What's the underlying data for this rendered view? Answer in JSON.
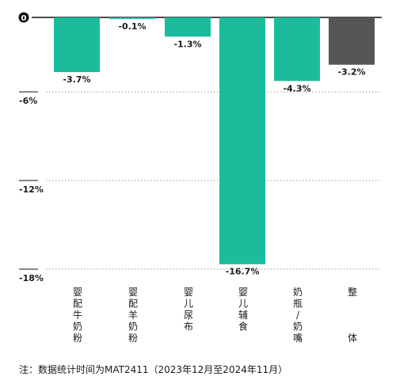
{
  "chart_data": {
    "type": "bar",
    "categories": [
      "婴配牛奶粉",
      "婴配羊奶粉",
      "婴儿尿布",
      "婴儿辅食",
      "奶瓶/奶嘴",
      "整体"
    ],
    "category_label_lines": [
      [
        "婴",
        "配",
        "牛",
        "奶",
        "粉"
      ],
      [
        "婴",
        "配",
        "羊",
        "奶",
        "粉"
      ],
      [
        "婴",
        "儿",
        "尿",
        "布"
      ],
      [
        "婴",
        "儿",
        "辅",
        "食"
      ],
      [
        "奶",
        "瓶",
        "/",
        "奶",
        "嘴"
      ],
      [
        "整",
        "",
        "",
        "",
        "体"
      ]
    ],
    "values": [
      -3.7,
      -0.1,
      -1.3,
      -16.7,
      -4.3,
      -3.2
    ],
    "value_labels": [
      "-3.7%",
      "-0.1%",
      "-1.3%",
      "-16.7%",
      "-4.3%",
      "-3.2%"
    ],
    "ylim": [
      -18,
      0
    ],
    "yticks": [
      0,
      -6,
      -12,
      -18
    ],
    "ytick_labels": [
      "0",
      "-6%",
      "-12%",
      "-18%"
    ],
    "grid": true,
    "colors": {
      "bar": "#1abc9c",
      "total_bar": "#555555",
      "axis": "#111111",
      "grid": "#999999",
      "zero_marker": "#111111"
    }
  },
  "note": "注：数据统计时间为MAT2411（2023年12月至2024年11月）"
}
